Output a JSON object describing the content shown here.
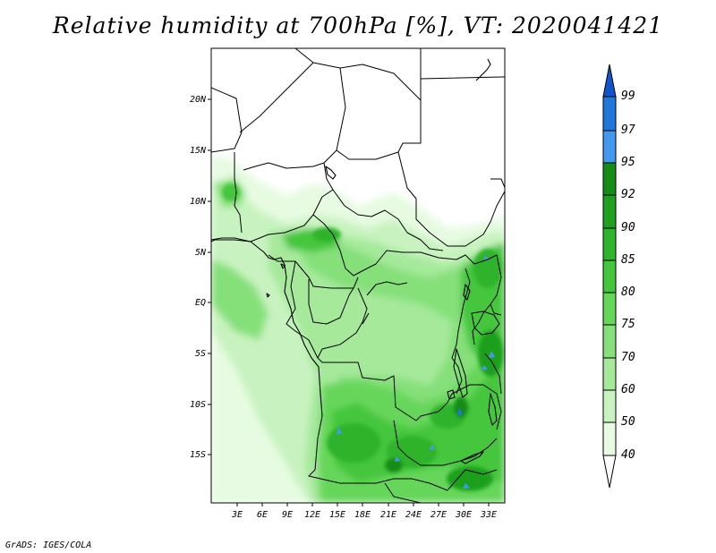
{
  "title": "Relative humidity at 700hPa [%], VT: 2020041421",
  "credit": "GrADS: IGES/COLA",
  "map": {
    "variable": "Relative humidity",
    "level": "700hPa",
    "units": "%",
    "valid_time": "2020041421",
    "lat_labels": [
      "20N",
      "15N",
      "10N",
      "5N",
      "EQ",
      "5S",
      "10S",
      "15S"
    ],
    "lon_labels": [
      "3E",
      "6E",
      "9E",
      "12E",
      "15E",
      "18E",
      "21E",
      "24E",
      "27E",
      "30E",
      "33E"
    ]
  },
  "colorbar": {
    "levels": [
      "40",
      "50",
      "60",
      "70",
      "75",
      "80",
      "85",
      "90",
      "92",
      "95",
      "97",
      "99"
    ],
    "colors": [
      "#ffffff",
      "#e6fbe1",
      "#c8f3c0",
      "#a6e99b",
      "#86e07a",
      "#66d65a",
      "#44c63c",
      "#2eb32c",
      "#1fa01f",
      "#158c15",
      "#4499ee",
      "#2277dd",
      "#1155cc"
    ]
  }
}
